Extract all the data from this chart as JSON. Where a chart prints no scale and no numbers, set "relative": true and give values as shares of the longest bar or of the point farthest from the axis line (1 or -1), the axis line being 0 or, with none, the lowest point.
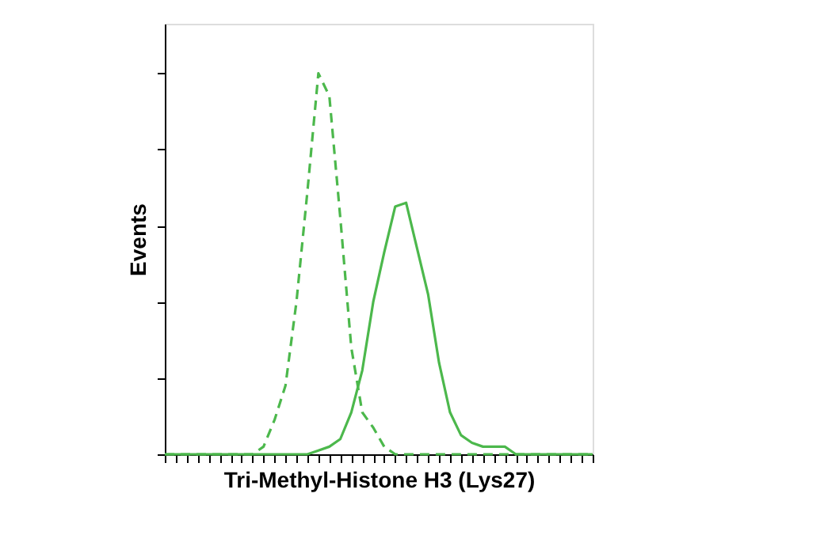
{
  "chart_data": {
    "type": "line",
    "relative": true,
    "xlabel": "Tri-Methyl-Histone H3 (Lys27)",
    "ylabel": "Events",
    "grid": false,
    "marker": "none",
    "tick_labels": false,
    "categories": [
      null,
      null,
      null,
      null,
      null,
      null,
      null,
      null,
      null,
      null,
      null,
      null,
      null,
      null,
      null,
      null,
      null,
      null,
      null,
      null,
      null,
      null,
      null,
      null,
      null,
      null,
      null,
      null,
      null,
      null,
      null,
      null,
      null,
      null,
      null,
      null,
      null,
      null,
      null,
      null
    ],
    "series": [
      {
        "color": "#4cb84c",
        "line_style": "dashed",
        "values": [
          0,
          0,
          0,
          0,
          0,
          0,
          0,
          0,
          0,
          0.02,
          0.09,
          0.18,
          0.4,
          0.69,
          1.0,
          0.94,
          0.62,
          0.28,
          0.11,
          0.07,
          0.02,
          0,
          0,
          0,
          0,
          0,
          0,
          0,
          0,
          0,
          0,
          0,
          0,
          0,
          0,
          0,
          0,
          0,
          0,
          0
        ]
      },
      {
        "color": "#4cb84c",
        "line_style": "solid",
        "values": [
          0,
          0,
          0,
          0,
          0,
          0,
          0,
          0,
          0,
          0,
          0,
          0,
          0,
          0,
          0.01,
          0.02,
          0.04,
          0.11,
          0.22,
          0.4,
          0.53,
          0.65,
          0.66,
          0.54,
          0.42,
          0.24,
          0.11,
          0.05,
          0.03,
          0.02,
          0.02,
          0.02,
          0,
          0,
          0,
          0,
          0,
          0,
          0,
          0
        ]
      }
    ]
  }
}
